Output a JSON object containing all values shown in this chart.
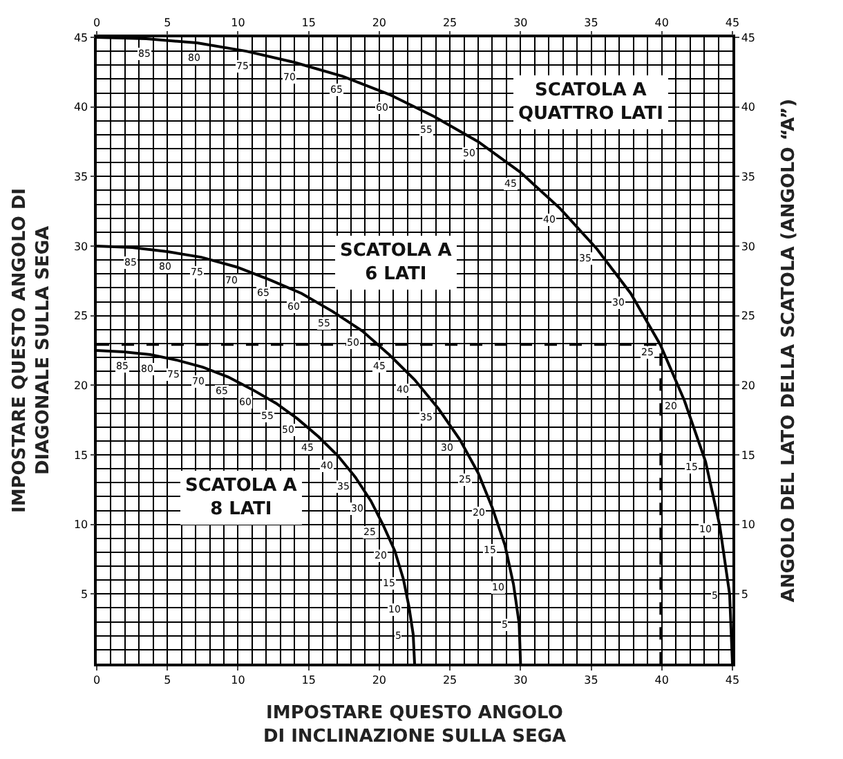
{
  "chart_data": {
    "type": "line",
    "xlabel": "IMPOSTARE QUESTO ANGOLO\nDI INCLINAZIONE SULLA SEGA",
    "ylabel": "IMPOSTARE QUESTO ANGOLO DI\nDIAGONALE SULLA SEGA",
    "y2label": "ANGOLO DEL LATO DELLA SCATOLA (ANGOLO “A”)",
    "xlim": [
      0,
      45
    ],
    "xticks": [
      0,
      5,
      10,
      15,
      20,
      25,
      30,
      35,
      40,
      45
    ],
    "x2lim": [
      0,
      45
    ],
    "x2ticks": [
      0,
      5,
      10,
      15,
      20,
      25,
      30,
      35,
      40,
      45
    ],
    "ylim": [
      0,
      45
    ],
    "yticks": [
      5,
      10,
      15,
      20,
      25,
      30,
      35,
      40,
      45
    ],
    "y2lim": [
      0,
      45
    ],
    "y2ticks": [
      5,
      10,
      15,
      20,
      25,
      30,
      35,
      40,
      45
    ],
    "grid": true,
    "annotations": [
      "SCATOLA A\nQUATTRO LATI",
      "SCATOLA A\n6 LATI",
      "SCATOLA A\n8 LATI",
      {
        "text": "5",
        "x": 44.8,
        "y": 5
      },
      {
        "text": "10",
        "x": 44.1,
        "y": 9.9
      },
      {
        "text": "15",
        "x": 43.1,
        "y": 14.5
      },
      {
        "text": "20",
        "x": 41.6,
        "y": 18.9
      },
      {
        "text": "25",
        "x": 39.9,
        "y": 22.9
      },
      {
        "text": "30",
        "x": 37.8,
        "y": 26.6
      },
      {
        "text": "35",
        "x": 35.4,
        "y": 29.8
      },
      {
        "text": "40",
        "x": 32.8,
        "y": 32.7
      },
      {
        "text": "45",
        "x": 30,
        "y": 35.3
      },
      {
        "text": "50",
        "x": 27,
        "y": 37.5
      },
      {
        "text": "55",
        "x": 23.9,
        "y": 39.3
      },
      {
        "text": "60",
        "x": 20.7,
        "y": 40.9
      },
      {
        "text": "65",
        "x": 17.4,
        "y": 42.2
      },
      {
        "text": "70",
        "x": 14,
        "y": 43.2
      },
      {
        "text": "75",
        "x": 10.6,
        "y": 44
      },
      {
        "text": "80",
        "x": 7.1,
        "y": 44.6
      },
      {
        "text": "85",
        "x": 3.5,
        "y": 44.9
      },
      {
        "text": "5",
        "x": 29.9,
        "y": 2.9
      },
      {
        "text": "10",
        "x": 29.5,
        "y": 5.7
      },
      {
        "text": "15",
        "x": 28.9,
        "y": 8.5
      },
      {
        "text": "20",
        "x": 28,
        "y": 11.2
      },
      {
        "text": "25",
        "x": 27,
        "y": 13.7
      },
      {
        "text": "30",
        "x": 25.7,
        "y": 16.1
      },
      {
        "text": "35",
        "x": 24.2,
        "y": 18.3
      },
      {
        "text": "40",
        "x": 22.5,
        "y": 20.4
      },
      {
        "text": "45",
        "x": 20.7,
        "y": 22.2
      },
      {
        "text": "50",
        "x": 18.8,
        "y": 23.9
      },
      {
        "text": "55",
        "x": 16.7,
        "y": 25.3
      },
      {
        "text": "60",
        "x": 14.5,
        "y": 26.6
      },
      {
        "text": "65",
        "x": 12.2,
        "y": 27.6
      },
      {
        "text": "70",
        "x": 9.9,
        "y": 28.5
      },
      {
        "text": "75",
        "x": 7.4,
        "y": 29.2
      },
      {
        "text": "80",
        "x": 5,
        "y": 29.6
      },
      {
        "text": "85",
        "x": 2.5,
        "y": 29.9
      },
      {
        "text": "5",
        "x": 22.4,
        "y": 2.1
      },
      {
        "text": "10",
        "x": 22.1,
        "y": 4.1
      },
      {
        "text": "15",
        "x": 21.7,
        "y": 6.1
      },
      {
        "text": "20",
        "x": 21.1,
        "y": 8.1
      },
      {
        "text": "25",
        "x": 20.3,
        "y": 9.9
      },
      {
        "text": "30",
        "x": 19.4,
        "y": 11.7
      },
      {
        "text": "35",
        "x": 18.3,
        "y": 13.4
      },
      {
        "text": "40",
        "x": 17.1,
        "y": 14.9
      },
      {
        "text": "45",
        "x": 15.7,
        "y": 16.3
      },
      {
        "text": "50",
        "x": 14.2,
        "y": 17.6
      },
      {
        "text": "55",
        "x": 12.7,
        "y": 18.7
      },
      {
        "text": "60",
        "x": 11,
        "y": 19.7
      },
      {
        "text": "65",
        "x": 9.3,
        "y": 20.6
      },
      {
        "text": "70",
        "x": 7.5,
        "y": 21.3
      },
      {
        "text": "75",
        "x": 5.7,
        "y": 21.8
      },
      {
        "text": "80",
        "x": 3.8,
        "y": 22.2
      },
      {
        "text": "85",
        "x": 1.9,
        "y": 22.4
      }
    ],
    "series": [
      {
        "color": "#000000",
        "line_style": "solid",
        "x": [
          45,
          44.8,
          44.1,
          43.1,
          41.6,
          39.9,
          37.8,
          35.4,
          32.8,
          30,
          27,
          23.9,
          20.7,
          17.4,
          14,
          10.6,
          7.1,
          3.5,
          0
        ],
        "values": [
          0,
          5,
          9.9,
          14.5,
          18.9,
          22.9,
          26.6,
          29.8,
          32.7,
          35.3,
          37.5,
          39.3,
          40.9,
          42.2,
          43.2,
          44,
          44.6,
          44.9,
          45
        ]
      },
      {
        "color": "#000000",
        "line_style": "solid",
        "x": [
          30,
          29.9,
          29.5,
          28.9,
          28,
          27,
          25.7,
          24.2,
          22.5,
          20.7,
          18.8,
          16.7,
          14.5,
          12.2,
          9.9,
          7.4,
          5,
          2.5,
          0
        ],
        "values": [
          0,
          2.9,
          5.7,
          8.5,
          11.2,
          13.7,
          16.1,
          18.3,
          20.4,
          22.2,
          23.9,
          25.3,
          26.6,
          27.6,
          28.5,
          29.2,
          29.6,
          29.9,
          30
        ]
      },
      {
        "color": "#000000",
        "line_style": "solid",
        "x": [
          22.5,
          22.4,
          22.1,
          21.7,
          21.1,
          20.3,
          19.4,
          18.3,
          17.1,
          15.7,
          14.2,
          12.7,
          11,
          9.3,
          7.5,
          5.7,
          3.8,
          1.9,
          0
        ],
        "values": [
          0,
          2.1,
          4.1,
          6.1,
          8.1,
          9.9,
          11.7,
          13.4,
          14.9,
          16.3,
          17.6,
          18.7,
          19.7,
          20.6,
          21.3,
          21.8,
          22.2,
          22.4,
          22.5
        ]
      },
      {
        "color": "#000000",
        "line_style": "dashed",
        "x": [
          0,
          39.9,
          39.9
        ],
        "values": [
          22.9,
          22.9,
          0
        ]
      }
    ]
  }
}
